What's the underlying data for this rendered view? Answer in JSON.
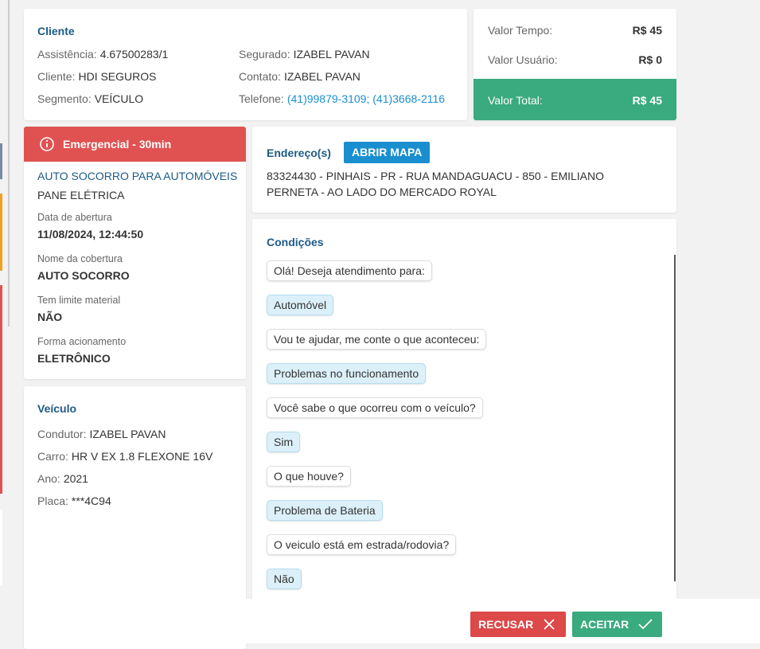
{
  "client": {
    "title": "Cliente",
    "fields": [
      {
        "label": "Assistência:",
        "value": "4.67500283/1"
      },
      {
        "label": "Cliente:",
        "value": "HDI SEGUROS"
      },
      {
        "label": "Segmento:",
        "value": "VEÍCULO"
      },
      {
        "label": "Segurado:",
        "value": "IZABEL PAVAN"
      },
      {
        "label": "Contato:",
        "value": "IZABEL PAVAN"
      },
      {
        "label": "Telefone:",
        "value": "(41)99879-3109; (41)3668-2116"
      }
    ]
  },
  "values": [
    {
      "label": "Valor Tempo:",
      "value": "R$ 45"
    },
    {
      "label": "Valor Usuário:",
      "value": "R$ 0"
    },
    {
      "label": "Valor Total:",
      "value": "R$ 45"
    }
  ],
  "service": {
    "badge": "Emergencial - 30min",
    "name": "AUTO SOCORRO PARA AUTOMÓVEIS",
    "problem": "PANE ELÉTRICA",
    "fields": [
      {
        "label": "Data de abertura",
        "value": "11/08/2024, 12:44:50"
      },
      {
        "label": "Nome da cobertura",
        "value": "AUTO SOCORRO"
      },
      {
        "label": "Tem limite material",
        "value": "NÃO"
      },
      {
        "label": "Forma acionamento",
        "value": "ELETRÔNICO"
      }
    ]
  },
  "vehicle": {
    "title": "Veículo",
    "fields": [
      {
        "label": "Condutor:",
        "value": "IZABEL PAVAN"
      },
      {
        "label": "Carro:",
        "value": "HR V EX 1.8 FLEXONE 16V"
      },
      {
        "label": "Ano:",
        "value": "2021"
      },
      {
        "label": "Placa:",
        "value": "***4C94"
      }
    ]
  },
  "address": {
    "title": "Endereço(s)",
    "button": "ABRIR MAPA",
    "text": "83324430 - PINHAIS - PR - RUA MANDAGUACU - 850 - EMILIANO PERNETA - AO LADO DO MERCADO ROYAL"
  },
  "conditions": {
    "title": "Condições",
    "messages": [
      "Olá! Deseja atendimento para:",
      "Automóvel",
      "Vou te ajudar, me conte o que aconteceu:",
      "Problemas no funcionamento",
      "Você sabe o que ocorreu com o veículo?",
      "Sim",
      "O que houve?",
      "Problema de Bateria",
      "O veiculo está em estrada/rodovia?",
      "Não"
    ]
  },
  "actions": {
    "reject": "RECUSAR",
    "accept": "ACEITAR"
  }
}
